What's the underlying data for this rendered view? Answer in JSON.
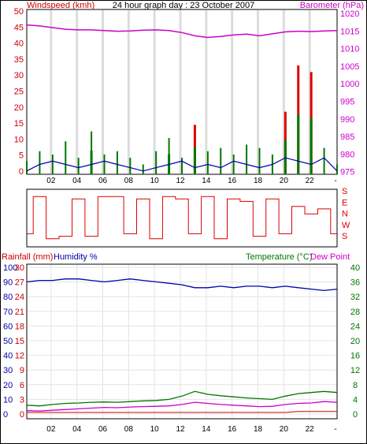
{
  "title": "24 hour graph day : 23 October 2007",
  "colors": {
    "wind_axis": "#cc0000",
    "baro_axis": "#cc00cc",
    "wind_avg": "#0000aa",
    "wind_gust_green": "#007700",
    "wind_gust_red": "#dd0000",
    "gust_fill": "#7a3a00",
    "barometer": "#cc00cc",
    "direction": "#dd0000",
    "rain": "#cc0000",
    "humidity": "#0000aa",
    "temperature": "#007700",
    "dew": "#cc00cc",
    "grid": "#dcdcdc"
  },
  "x_axis": {
    "ticks": [
      "02",
      "04",
      "06",
      "08",
      "10",
      "12",
      "14",
      "16",
      "18",
      "20",
      "22",
      "-"
    ]
  },
  "panel_wind": {
    "left_label": "Windspeed (kmh)",
    "right_label": "Barometer (hPa)",
    "left_ticks": [
      "50",
      "45",
      "40",
      "35",
      "30",
      "25",
      "20",
      "15",
      "10",
      "5",
      "0"
    ],
    "right_ticks": [
      "1020",
      "1015",
      "1010",
      "1005",
      "1000",
      "995",
      "990",
      "985",
      "980",
      "975"
    ]
  },
  "panel_dir": {
    "labels": [
      "S",
      "E",
      "N",
      "W",
      "S"
    ]
  },
  "panel_temp": {
    "left_label_rain": "Rainfall (mm)",
    "left_label_hum": "Humidity %",
    "right_label_temp": "Temperature (°C)",
    "right_label_dew": "Dew Point",
    "rain_ticks": [
      "30",
      "27",
      "24",
      "21",
      "18",
      "15",
      "12",
      "9",
      "6",
      "3",
      "0"
    ],
    "hum_ticks": [
      "100",
      "90",
      "80",
      "70",
      "60",
      "50",
      "40",
      "30",
      "20",
      "10",
      "0"
    ],
    "temp_ticks": [
      "40",
      "36",
      "32",
      "28",
      "24",
      "20",
      "16",
      "12",
      "8",
      "4",
      "0"
    ]
  },
  "chart_data": [
    {
      "type": "line",
      "name_note": "wind and barometer panel",
      "x": [
        0,
        1,
        2,
        3,
        4,
        5,
        6,
        7,
        8,
        9,
        10,
        11,
        12,
        13,
        14,
        15,
        16,
        17,
        18,
        19,
        20,
        21,
        22,
        23,
        24
      ],
      "series": [
        {
          "name": "Barometer (hPa)",
          "axis": "right",
          "values": [
            1017.3,
            1017.0,
            1016.5,
            1016.0,
            1015.8,
            1015.8,
            1015.6,
            1015.4,
            1015.5,
            1015.7,
            1015.8,
            1015.6,
            1015.0,
            1014.0,
            1013.5,
            1013.8,
            1014.3,
            1014.5,
            1014.0,
            1014.6,
            1015.2,
            1015.4,
            1015.3,
            1015.5,
            1015.6
          ]
        },
        {
          "name": "Windspeed average (kmh)",
          "axis": "left",
          "values": [
            1,
            3,
            4,
            3,
            2,
            3,
            4,
            3,
            2,
            1,
            2,
            3,
            4,
            2,
            3,
            2,
            4,
            3,
            2,
            3,
            5,
            4,
            3,
            5,
            1
          ]
        },
        {
          "name": "Wind gust (kmh)",
          "axis": "left",
          "values": [
            4,
            7,
            6,
            10,
            5,
            13,
            6,
            7,
            5,
            3,
            7,
            11,
            5,
            15,
            7,
            8,
            6,
            9,
            8,
            6,
            19,
            33,
            31,
            8,
            3
          ]
        }
      ],
      "ylim_left": [
        0,
        50
      ],
      "ylim_right": [
        972,
        1022
      ]
    },
    {
      "type": "line",
      "name_note": "wind direction panel",
      "x": [
        0,
        1,
        2,
        3,
        4,
        5,
        6,
        7,
        8,
        9,
        10,
        11,
        12,
        13,
        14,
        15,
        16,
        17,
        18,
        19,
        20,
        21,
        22,
        23,
        24
      ],
      "series": [
        {
          "name": "Wind direction",
          "values": [
            0.2,
            0.95,
            0.1,
            0.15,
            0.9,
            0.15,
            0.95,
            0.95,
            0.2,
            0.9,
            0.1,
            0.95,
            0.9,
            0.2,
            0.95,
            0.1,
            0.9,
            0.85,
            0.15,
            0.9,
            0.2,
            0.75,
            0.6,
            0.7,
            0.2
          ]
        }
      ],
      "ylim": [
        0,
        1
      ]
    },
    {
      "type": "line",
      "name_note": "temperature humidity rainfall panel",
      "x": [
        0,
        1,
        2,
        3,
        4,
        5,
        6,
        7,
        8,
        9,
        10,
        11,
        12,
        13,
        14,
        15,
        16,
        17,
        18,
        19,
        20,
        21,
        22,
        23,
        24
      ],
      "series": [
        {
          "name": "Humidity %",
          "axis": "left",
          "values": [
            90,
            91,
            91,
            92,
            92,
            91,
            90,
            91,
            92,
            91,
            90,
            89,
            88,
            86,
            86,
            87,
            86,
            87,
            87,
            86,
            87,
            86,
            85,
            84,
            85
          ]
        },
        {
          "name": "Temperature (°C)",
          "axis": "right",
          "values": [
            2.0,
            1.8,
            2.2,
            2.5,
            2.6,
            2.8,
            2.9,
            2.8,
            3.0,
            3.2,
            3.3,
            3.6,
            4.5,
            5.8,
            5.0,
            4.6,
            4.3,
            4.0,
            3.8,
            3.6,
            4.5,
            5.2,
            5.5,
            5.8,
            5.5
          ]
        },
        {
          "name": "Dew Point",
          "axis": "right",
          "values": [
            0.5,
            0.4,
            0.6,
            0.8,
            1.0,
            1.2,
            1.4,
            1.3,
            1.5,
            1.6,
            1.7,
            1.8,
            2.2,
            2.8,
            2.5,
            2.2,
            2.0,
            1.8,
            1.6,
            1.7,
            2.2,
            2.5,
            2.6,
            3.0,
            2.8
          ]
        },
        {
          "name": "Rainfall (mm)",
          "axis": "left-rain",
          "values": [
            0,
            0,
            0,
            0,
            0,
            0,
            0,
            0,
            0,
            0,
            0,
            0,
            0,
            0,
            0,
            0,
            0,
            0,
            0,
            0,
            0,
            0.2,
            0.2,
            0.2,
            0.2
          ]
        }
      ],
      "ylim_left": [
        0,
        100
      ],
      "ylim_right": [
        0,
        40
      ]
    }
  ]
}
